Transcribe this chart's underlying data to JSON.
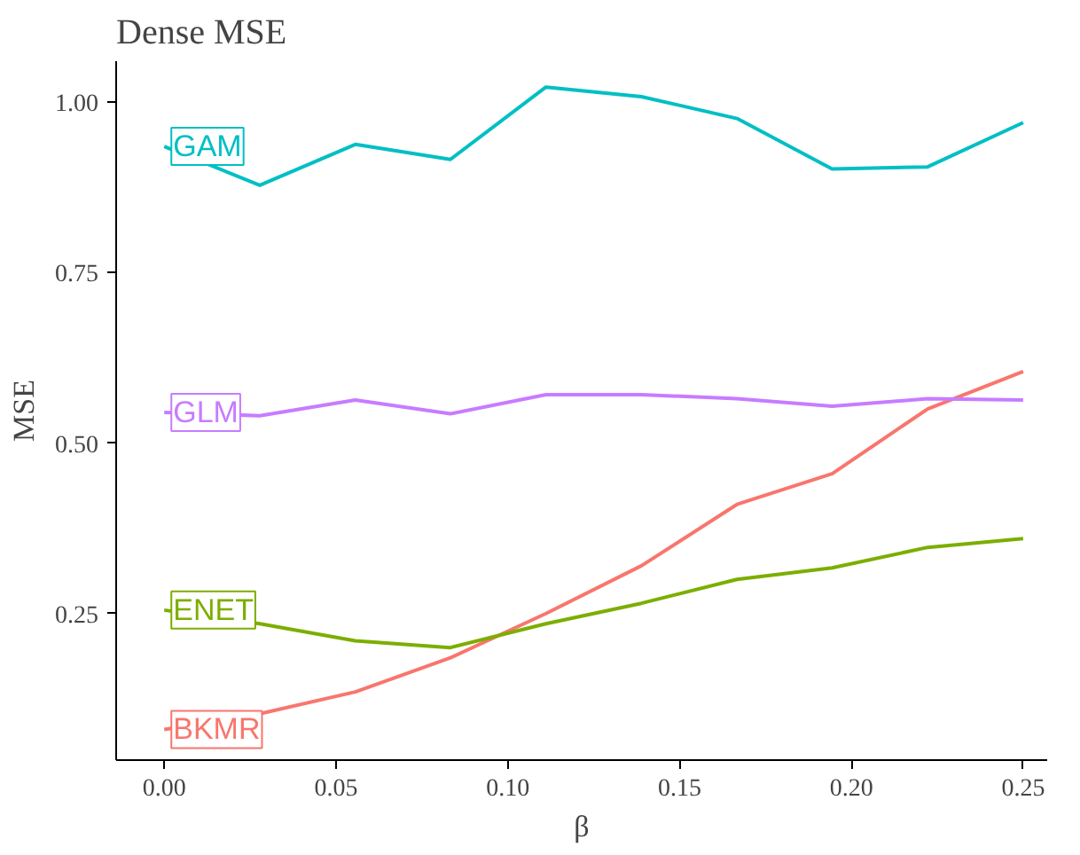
{
  "chart_data": {
    "type": "line",
    "title": "Dense MSE",
    "xlabel": "β",
    "ylabel": "MSE",
    "x": [
      0,
      0.0278,
      0.0556,
      0.0833,
      0.1111,
      0.1389,
      0.1667,
      0.1944,
      0.2222,
      0.25
    ],
    "xlim": [
      -0.014,
      0.257
    ],
    "ylim": [
      0.035,
      1.06
    ],
    "xticks": [
      {
        "value": 0,
        "label": "0.00"
      },
      0.05,
      {
        "value": 0.1,
        "label": "0.10"
      },
      0.15,
      {
        "value": 0.2,
        "label": "0.20"
      },
      0.25
    ],
    "yticks": [
      0.25,
      {
        "value": 0.5,
        "label": "0.50"
      },
      0.75,
      {
        "value": 1,
        "label": "1.00"
      }
    ],
    "grid": false,
    "marker": "none",
    "line_style": "solid",
    "series": [
      {
        "name": "BKMR",
        "color": "#f8766d",
        "values": [
          0.08,
          0.103,
          0.135,
          0.185,
          0.25,
          0.32,
          0.41,
          0.455,
          0.55,
          0.605
        ]
      },
      {
        "name": "ENET",
        "color": "#7cae00",
        "values": [
          0.255,
          0.235,
          0.21,
          0.2,
          0.235,
          0.265,
          0.3,
          0.317,
          0.347,
          0.36
        ]
      },
      {
        "name": "GAM",
        "color": "#00bfc4",
        "values": [
          0.935,
          0.878,
          0.938,
          0.916,
          1.022,
          1.008,
          0.976,
          0.902,
          0.905,
          0.97
        ]
      },
      {
        "name": "GLM",
        "color": "#c77cff",
        "values": [
          0.545,
          0.54,
          0.563,
          0.543,
          0.571,
          0.571,
          0.565,
          0.554,
          0.565,
          0.563
        ]
      }
    ]
  }
}
